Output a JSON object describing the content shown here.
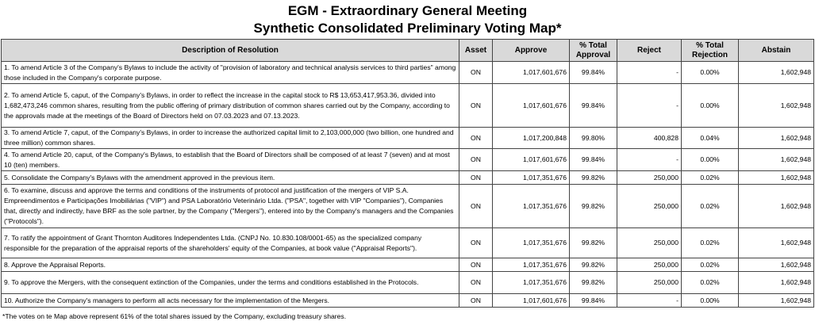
{
  "header": {
    "title_line1": "EGM - Extraordinary General Meeting",
    "title_line2": "Synthetic Consolidated Preliminary Voting Map*"
  },
  "table": {
    "columns": [
      "Description of Resolution",
      "Asset",
      "Approve",
      "% Total Approval",
      "Reject",
      "% Total Rejection",
      "Abstain"
    ],
    "rows": [
      [
        "1. To amend Article 3 of the Company's Bylaws to include the activity of \"provision of laboratory and technical analysis services to third parties\" among those included in the Company's corporate purpose.",
        "ON",
        "1,017,601,676",
        "99.84%",
        "-",
        "0.00%",
        "1,602,948"
      ],
      [
        "2. To amend Article 5, caput, of the Company's Bylaws, in order to reflect the increase in the capital stock to R$ 13,653,417,953.36, divided into 1,682,473,246 common shares, resulting from the public offering of primary distribution of common shares carried out by the Company, according to the approvals made at the meetings of the Board of Directors held on 07.03.2023 and 07.13.2023.",
        "ON",
        "1,017,601,676",
        "99.84%",
        "-",
        "0.00%",
        "1,602,948"
      ],
      [
        "3. To amend Article 7, caput, of the Company's Bylaws, in order to increase the authorized capital limit to 2,103,000,000 (two billion, one hundred and three million) common shares.",
        "ON",
        "1,017,200,848",
        "99.80%",
        "400,828",
        "0.04%",
        "1,602,948"
      ],
      [
        "4. To amend Article 20, caput, of the Company's Bylaws, to establish that the Board of Directors shall be composed of at least 7 (seven) and at most 10 (ten) members.",
        "ON",
        "1,017,601,676",
        "99.84%",
        "-",
        "0.00%",
        "1,602,948"
      ],
      [
        "5. Consolidate the Company's Bylaws with the amendment approved in the previous item.",
        "ON",
        "1,017,351,676",
        "99.82%",
        "250,000",
        "0.02%",
        "1,602,948"
      ],
      [
        "6. To examine, discuss and approve the terms and conditions of the instruments of protocol and justification of the mergers of VIP S.A. Empreendimentos e Participações Imobiliárias (\"VIP\") and PSA Laboratório Veterinário Ltda. (\"PSA\", together with VIP \"Companies\"), Companies that, directly and indirectly, have BRF as the sole partner, by the Company (\"Mergers\"), entered into by the Company's managers and the Companies (\"Protocols\").",
        "ON",
        "1,017,351,676",
        "99.82%",
        "250,000",
        "0.02%",
        "1,602,948"
      ],
      [
        "7. To ratify the appointment of Grant Thornton Auditores Independentes Ltda. (CNPJ No. 10.830.108/0001-65) as the specialized company responsible for the preparation of the appraisal reports of the shareholders' equity of the Companies, at book value (\"Appraisal Reports\").",
        "ON",
        "1,017,351,676",
        "99.82%",
        "250,000",
        "0.02%",
        "1,602,948"
      ],
      [
        "8. Approve the Appraisal Reports.",
        "ON",
        "1,017,351,676",
        "99.82%",
        "250,000",
        "0.02%",
        "1,602,948"
      ],
      [
        "9. To approve the Mergers, with the consequent extinction of the Companies, under the terms and conditions established in the Protocols.",
        "ON",
        "1,017,351,676",
        "99.82%",
        "250,000",
        "0.02%",
        "1,602,948"
      ],
      [
        "10. Authorize the Company's managers to perform all acts necessary for the implementation of the Mergers.",
        "ON",
        "1,017,601,676",
        "99.84%",
        "-",
        "0.00%",
        "1,602,948"
      ]
    ]
  },
  "footnote": "*The votes on te Map above represent 61% of the total shares issued by the Company, excluding treasury shares."
}
